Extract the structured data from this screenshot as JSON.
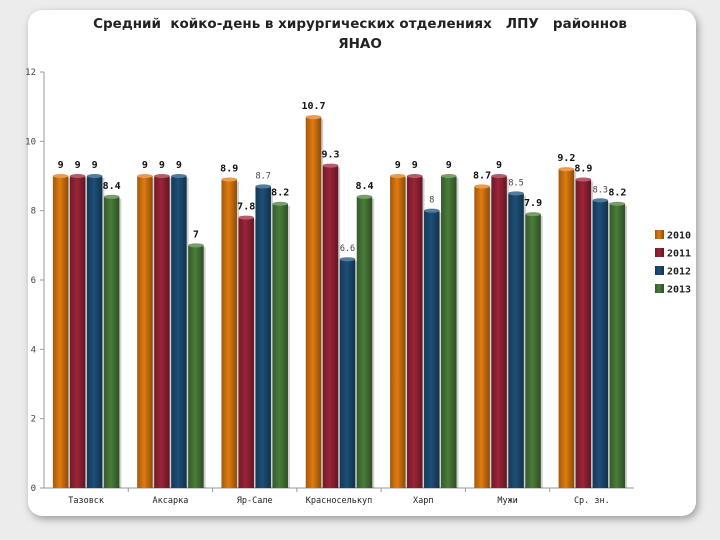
{
  "chart_data": {
    "type": "bar",
    "title": "Средний  койко-день в хирургических отделениях   ЛПУ   районнов\nЯНАО",
    "categories": [
      "Тазовск",
      "Аксарка",
      "Яр-Сале",
      "Красноселькуп",
      "Харп",
      "Мужи",
      "Ср. зн."
    ],
    "series": [
      {
        "name": "2010",
        "color": "#e07b10",
        "values": [
          9,
          9,
          8.9,
          10.7,
          9,
          8.7,
          9.2
        ],
        "labels": [
          "9",
          "9",
          "8.9",
          "10.7",
          "9",
          "8.7",
          "9.2"
        ]
      },
      {
        "name": "2011",
        "color": "#9c2438",
        "values": [
          9,
          9,
          7.8,
          9.3,
          9,
          9,
          8.9
        ],
        "labels": [
          "9",
          "9",
          "7.8",
          "9.3",
          "9",
          "9",
          "8.9"
        ]
      },
      {
        "name": "2012",
        "color": "#1d4f78",
        "values": [
          9,
          9,
          8.7,
          6.6,
          8,
          8.5,
          8.3
        ],
        "labels": [
          "9",
          "9",
          "8.7",
          "6.6",
          "8",
          "8.5",
          "8.3"
        ]
      },
      {
        "name": "2013",
        "color": "#4a7d3a",
        "values": [
          8.4,
          7,
          8.2,
          8.4,
          9,
          7.9,
          8.2
        ],
        "labels": [
          "8.4",
          "7",
          "8.2",
          "8.4",
          "9",
          "7.9",
          "8.2"
        ]
      }
    ],
    "ylim": [
      0,
      12
    ],
    "yticks": [
      "0",
      "2",
      "4",
      "6",
      "8",
      "10",
      "12"
    ],
    "xlabel": "",
    "ylabel": "",
    "grid": false,
    "legend": "right"
  }
}
